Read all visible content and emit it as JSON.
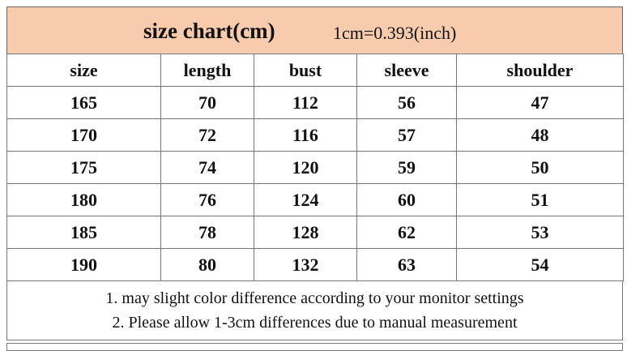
{
  "header": {
    "title": "size chart(cm)",
    "conversion": "1cm=0.393(inch)"
  },
  "table": {
    "columns": [
      "size",
      "length",
      "bust",
      "sleeve",
      "shoulder"
    ],
    "rows": [
      [
        165,
        70,
        112,
        56,
        47
      ],
      [
        170,
        72,
        116,
        57,
        48
      ],
      [
        175,
        74,
        120,
        59,
        50
      ],
      [
        180,
        76,
        124,
        60,
        51
      ],
      [
        185,
        78,
        128,
        62,
        53
      ],
      [
        190,
        80,
        132,
        63,
        54
      ]
    ]
  },
  "notes": [
    "1. may slight color difference according to your monitor settings",
    "2. Please allow 1-3cm differences due to manual measurement"
  ]
}
